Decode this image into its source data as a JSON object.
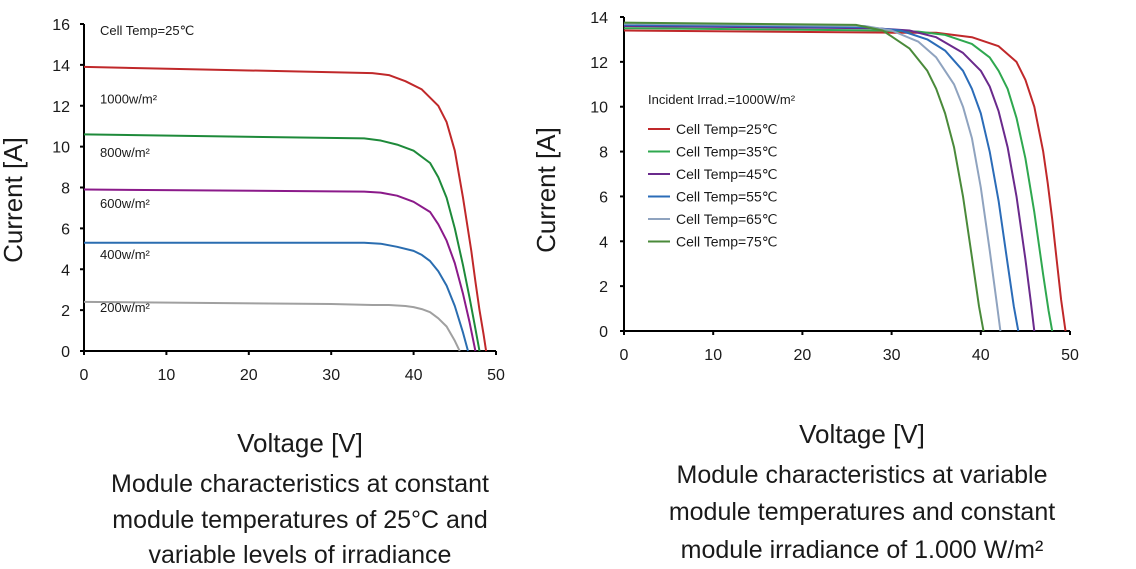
{
  "chart_data": [
    {
      "type": "line",
      "caption": [
        "Module characteristics at constant",
        "module temperatures of 25°C and",
        "variable levels of irradiance"
      ],
      "xlabel": "Voltage [V]",
      "ylabel": "Current [A]",
      "xlim": [
        0,
        50
      ],
      "ylim": [
        0,
        16
      ],
      "xticks": [
        0,
        10,
        20,
        30,
        40,
        50
      ],
      "yticks": [
        0,
        2,
        4,
        6,
        8,
        10,
        12,
        14,
        16
      ],
      "grid": false,
      "annotation": "Cell Temp=25℃",
      "series": [
        {
          "name": "1000w/m²",
          "label_y": 12.1,
          "color": "#c0282a",
          "x": [
            0,
            35,
            37,
            39,
            41,
            43,
            44,
            45,
            46,
            47,
            47.5,
            48,
            48.5,
            48.8
          ],
          "y": [
            13.9,
            13.6,
            13.5,
            13.2,
            12.8,
            12.0,
            11.2,
            9.8,
            7.5,
            4.9,
            3.4,
            2.0,
            0.8,
            0
          ]
        },
        {
          "name": "800w/m²",
          "label_y": 9.5,
          "color": "#1e8a3a",
          "x": [
            0,
            34,
            36,
            38,
            40,
            42,
            43,
            44,
            45,
            46,
            46.8,
            47.4,
            48.0
          ],
          "y": [
            10.6,
            10.4,
            10.3,
            10.1,
            9.8,
            9.2,
            8.5,
            7.5,
            6.0,
            4.2,
            2.6,
            1.3,
            0
          ]
        },
        {
          "name": "600w/m²",
          "label_y": 7.0,
          "color": "#8b1a8a",
          "x": [
            0,
            34,
            36,
            38,
            40,
            42,
            43,
            44,
            45,
            46,
            46.8,
            47.5
          ],
          "y": [
            7.9,
            7.8,
            7.75,
            7.6,
            7.3,
            6.8,
            6.2,
            5.4,
            4.3,
            2.8,
            1.4,
            0
          ]
        },
        {
          "name": "400w/m²",
          "label_y": 4.5,
          "color": "#2a6db0",
          "x": [
            0,
            34,
            36,
            38,
            40,
            41,
            42,
            43,
            44,
            45,
            46,
            46.6
          ],
          "y": [
            5.3,
            5.3,
            5.25,
            5.1,
            4.9,
            4.7,
            4.4,
            3.9,
            3.2,
            2.2,
            0.9,
            0
          ]
        },
        {
          "name": "200w/m²",
          "label_y": 1.9,
          "color": "#a0a0a0",
          "x": [
            0,
            30,
            35,
            37,
            39,
            40,
            41,
            42,
            43,
            44,
            45,
            45.6
          ],
          "y": [
            2.4,
            2.3,
            2.25,
            2.25,
            2.2,
            2.15,
            2.05,
            1.9,
            1.6,
            1.2,
            0.5,
            0
          ]
        }
      ]
    },
    {
      "type": "line",
      "caption": [
        "Module characteristics at variable",
        "module temperatures and constant",
        "module irradiance of 1.000 W/m²"
      ],
      "xlabel": "Voltage [V]",
      "ylabel": "Current [A]",
      "xlim": [
        0,
        50
      ],
      "ylim": [
        0,
        14
      ],
      "xticks": [
        0,
        10,
        20,
        30,
        40,
        50
      ],
      "yticks": [
        0,
        2,
        4,
        6,
        8,
        10,
        12,
        14
      ],
      "grid": false,
      "legend_title": "Incident Irrad.=1000W/m²",
      "legend_position": "left",
      "series": [
        {
          "name": "Cell Temp=25℃",
          "color": "#c0282a",
          "x": [
            0,
            30,
            35,
            39,
            42,
            44,
            45,
            46,
            47,
            47.5,
            48,
            48.5,
            49,
            49.5
          ],
          "y": [
            13.4,
            13.3,
            13.3,
            13.1,
            12.7,
            12.0,
            11.2,
            10.0,
            8.0,
            6.6,
            5.0,
            3.2,
            1.4,
            0
          ]
        },
        {
          "name": "Cell Temp=35℃",
          "color": "#2fa84f",
          "x": [
            0,
            29,
            33,
            36,
            39,
            41,
            42,
            43,
            44,
            45,
            46,
            47,
            47.6,
            48
          ],
          "y": [
            13.5,
            13.4,
            13.35,
            13.2,
            12.8,
            12.2,
            11.6,
            10.8,
            9.5,
            7.7,
            5.3,
            2.5,
            0.9,
            0
          ]
        },
        {
          "name": "Cell Temp=45℃",
          "color": "#6a2a8c",
          "x": [
            0,
            28,
            32,
            35,
            38,
            40,
            41,
            42,
            43,
            44,
            45,
            45.6,
            46
          ],
          "y": [
            13.6,
            13.5,
            13.4,
            13.1,
            12.4,
            11.6,
            10.9,
            9.8,
            8.2,
            6.0,
            3.2,
            1.3,
            0
          ]
        },
        {
          "name": "Cell Temp=55℃",
          "color": "#2b6cb8",
          "x": [
            0,
            27,
            31,
            34,
            36,
            38,
            39,
            40,
            41,
            42,
            43,
            43.7,
            44.2
          ],
          "y": [
            13.65,
            13.55,
            13.4,
            13.0,
            12.5,
            11.6,
            10.8,
            9.7,
            8.0,
            5.8,
            3.0,
            1.1,
            0
          ]
        },
        {
          "name": "Cell Temp=65℃",
          "color": "#8fa3bf",
          "x": [
            0,
            27,
            30,
            33,
            35,
            37,
            38,
            39,
            40,
            41,
            41.8,
            42.2
          ],
          "y": [
            13.7,
            13.6,
            13.4,
            12.9,
            12.2,
            11.0,
            10.0,
            8.6,
            6.4,
            3.6,
            1.2,
            0
          ]
        },
        {
          "name": "Cell Temp=75℃",
          "color": "#4a8a3a",
          "x": [
            0,
            26,
            29,
            32,
            34,
            35,
            36,
            37,
            38,
            39,
            39.8,
            40.3
          ],
          "y": [
            13.75,
            13.65,
            13.4,
            12.6,
            11.6,
            10.8,
            9.7,
            8.2,
            6.0,
            3.3,
            1.1,
            0
          ]
        }
      ]
    }
  ]
}
